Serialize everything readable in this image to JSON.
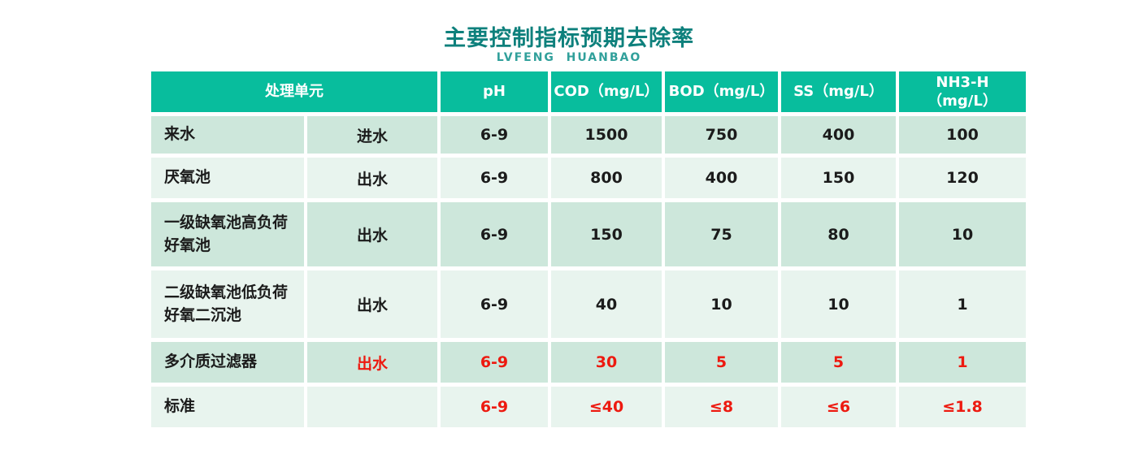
{
  "title": "主要控制指标预期去除率",
  "subtitle": "LVFENG  HUANBAO",
  "colors": {
    "header_bg": "#08bd9d",
    "row_dark": "#cde7db",
    "row_light": "#e8f4ee",
    "title_teal": "#0e807c",
    "subtitle_teal": "#31a09b",
    "highlight_red": "#ed1a10",
    "body_text": "#1b1b1b",
    "header_text": "#ffffff"
  },
  "table": {
    "headers": {
      "unit": "处理单元",
      "ph": "pH",
      "cod": "COD（mg/L）",
      "bod": "BOD（mg/L）",
      "ss": "SS（mg/L）",
      "nh3": "NH3-H\n（mg/L）"
    },
    "rows": [
      {
        "unit": "来水",
        "stream": "进水",
        "ph": "6-9",
        "cod": "1500",
        "bod": "750",
        "ss": "400",
        "nh3": "100"
      },
      {
        "unit": "厌氧池",
        "stream": "出水",
        "ph": "6-9",
        "cod": "800",
        "bod": "400",
        "ss": "150",
        "nh3": "120"
      },
      {
        "unit": "一级缺氧池高负荷好氧池",
        "stream": "出水",
        "ph": "6-9",
        "cod": "150",
        "bod": "75",
        "ss": "80",
        "nh3": "10"
      },
      {
        "unit": "二级缺氧池低负荷好氧二沉池",
        "stream": "出水",
        "ph": "6-9",
        "cod": "40",
        "bod": "10",
        "ss": "10",
        "nh3": "1"
      },
      {
        "unit": "多介质过滤器",
        "stream": "出水",
        "ph": "6-9",
        "cod": "30",
        "bod": "5",
        "ss": "5",
        "nh3": "1"
      },
      {
        "unit": "标准",
        "stream": "",
        "ph": "6-9",
        "cod": "≤40",
        "bod": "≤8",
        "ss": "≤6",
        "nh3": "≤1.8"
      }
    ]
  }
}
